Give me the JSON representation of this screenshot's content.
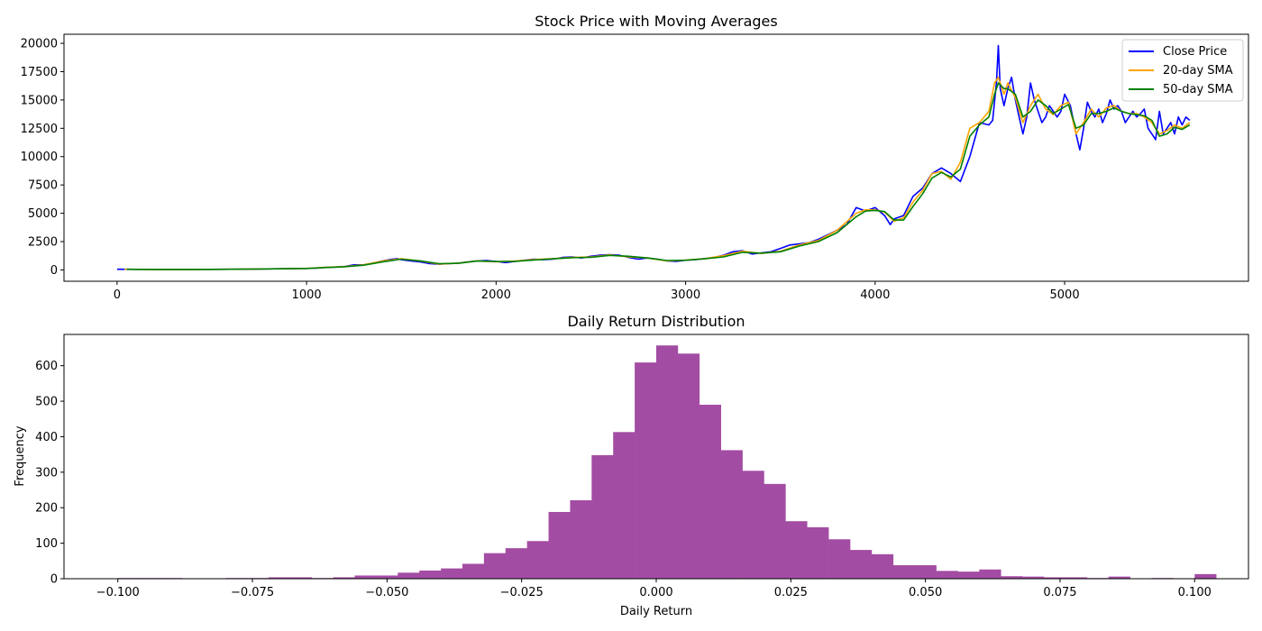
{
  "chart_data": [
    {
      "type": "line",
      "title": "Stock Price with Moving Averages",
      "xlabel": "",
      "ylabel": "",
      "xlim": [
        -280,
        5970
      ],
      "ylim": [
        -1000,
        20800
      ],
      "xticks": [
        0,
        1000,
        2000,
        3000,
        4000,
        5000
      ],
      "yticks": [
        0,
        2500,
        5000,
        7500,
        10000,
        12500,
        15000,
        17500,
        20000
      ],
      "grid": false,
      "legend_position": "top-right",
      "series": [
        {
          "name": "Close Price",
          "color": "#0000ff",
          "x": [
            0,
            100,
            200,
            300,
            400,
            500,
            600,
            700,
            800,
            900,
            1000,
            1050,
            1080,
            1100,
            1150,
            1200,
            1250,
            1300,
            1350,
            1400,
            1450,
            1480,
            1500,
            1550,
            1600,
            1650,
            1700,
            1750,
            1800,
            1850,
            1900,
            1950,
            2000,
            2050,
            2100,
            2150,
            2200,
            2250,
            2300,
            2350,
            2400,
            2450,
            2500,
            2550,
            2600,
            2650,
            2700,
            2750,
            2800,
            2850,
            2900,
            2950,
            3000,
            3050,
            3100,
            3150,
            3200,
            3250,
            3300,
            3350,
            3400,
            3450,
            3500,
            3550,
            3600,
            3650,
            3700,
            3750,
            3800,
            3850,
            3900,
            3950,
            4000,
            4050,
            4080,
            4100,
            4150,
            4200,
            4250,
            4300,
            4350,
            4400,
            4450,
            4500,
            4550,
            4600,
            4620,
            4640,
            4650,
            4660,
            4680,
            4700,
            4720,
            4740,
            4760,
            4780,
            4800,
            4820,
            4840,
            4860,
            4880,
            4900,
            4920,
            4940,
            4960,
            4980,
            5000,
            5030,
            5060,
            5080,
            5100,
            5120,
            5140,
            5160,
            5180,
            5200,
            5220,
            5240,
            5260,
            5280,
            5300,
            5320,
            5340,
            5360,
            5380,
            5400,
            5420,
            5440,
            5460,
            5480,
            5500,
            5520,
            5540,
            5560,
            5580,
            5600,
            5620,
            5640,
            5660
          ],
          "y": [
            60,
            50,
            45,
            40,
            45,
            50,
            60,
            70,
            90,
            110,
            130,
            150,
            200,
            230,
            250,
            300,
            450,
            450,
            600,
            800,
            950,
            1000,
            900,
            800,
            700,
            550,
            500,
            550,
            600,
            700,
            800,
            820,
            750,
            650,
            750,
            850,
            950,
            900,
            950,
            1100,
            1150,
            1050,
            1200,
            1300,
            1350,
            1300,
            1100,
            950,
            1050,
            950,
            800,
            750,
            850,
            900,
            1000,
            1100,
            1300,
            1600,
            1700,
            1400,
            1500,
            1600,
            1900,
            2200,
            2300,
            2400,
            2700,
            3100,
            3500,
            4000,
            5500,
            5200,
            5500,
            4800,
            4000,
            4500,
            4800,
            6500,
            7200,
            8500,
            9000,
            8500,
            7800,
            10000,
            13000,
            12800,
            13200,
            16500,
            19800,
            16000,
            14500,
            16000,
            17000,
            15000,
            13500,
            12000,
            13500,
            16500,
            15000,
            14000,
            13000,
            13500,
            14500,
            14000,
            13500,
            14000,
            15500,
            14500,
            12000,
            10600,
            12500,
            14800,
            14000,
            13500,
            14200,
            13000,
            13800,
            15000,
            14200,
            14500,
            14000,
            13000,
            13500,
            14000,
            13500,
            13800,
            14200,
            12500,
            12000,
            11500,
            14000,
            12000,
            12500,
            13000,
            12000,
            13500,
            12800,
            13500,
            13200
          ]
        },
        {
          "name": "20-day SMA",
          "color": "#ffa500",
          "x": [
            40,
            100,
            200,
            300,
            400,
            500,
            600,
            700,
            800,
            900,
            1000,
            1100,
            1200,
            1300,
            1400,
            1500,
            1600,
            1700,
            1800,
            1900,
            2000,
            2100,
            2200,
            2300,
            2400,
            2500,
            2600,
            2700,
            2800,
            2900,
            3000,
            3100,
            3200,
            3300,
            3400,
            3500,
            3600,
            3700,
            3800,
            3900,
            3950,
            4000,
            4050,
            4100,
            4150,
            4200,
            4250,
            4300,
            4350,
            4400,
            4450,
            4500,
            4550,
            4600,
            4630,
            4650,
            4680,
            4700,
            4740,
            4780,
            4820,
            4860,
            4900,
            4940,
            4980,
            5020,
            5060,
            5100,
            5140,
            5180,
            5220,
            5260,
            5300,
            5340,
            5380,
            5420,
            5460,
            5500,
            5540,
            5580,
            5620,
            5660
          ],
          "y": [
            55,
            48,
            43,
            42,
            46,
            52,
            60,
            72,
            92,
            110,
            130,
            230,
            300,
            450,
            780,
            980,
            780,
            520,
            600,
            800,
            720,
            780,
            920,
            1000,
            1100,
            1150,
            1320,
            1150,
            1050,
            800,
            860,
            1000,
            1250,
            1650,
            1450,
            1650,
            2200,
            2600,
            3500,
            5000,
            5300,
            5300,
            5100,
            4300,
            4600,
            6000,
            7000,
            8500,
            8700,
            8000,
            9500,
            12500,
            13000,
            14000,
            16500,
            17000,
            15500,
            16500,
            15200,
            13000,
            14500,
            15500,
            14200,
            13700,
            14500,
            14800,
            12000,
            13000,
            14200,
            13500,
            14300,
            14500,
            14000,
            13800,
            13800,
            13500,
            13000,
            12000,
            12300,
            12800,
            12500,
            13000
          ]
        },
        {
          "name": "50-day SMA",
          "color": "#008000",
          "x": [
            50,
            100,
            200,
            300,
            400,
            500,
            600,
            700,
            800,
            900,
            1000,
            1100,
            1200,
            1300,
            1400,
            1500,
            1600,
            1700,
            1800,
            1900,
            2000,
            2100,
            2200,
            2300,
            2400,
            2500,
            2600,
            2700,
            2800,
            2900,
            3000,
            3100,
            3200,
            3300,
            3400,
            3500,
            3600,
            3700,
            3800,
            3900,
            3950,
            4000,
            4050,
            4100,
            4150,
            4200,
            4250,
            4300,
            4350,
            4400,
            4450,
            4500,
            4550,
            4600,
            4630,
            4650,
            4680,
            4700,
            4740,
            4780,
            4820,
            4860,
            4900,
            4940,
            4980,
            5020,
            5060,
            5100,
            5140,
            5180,
            5220,
            5260,
            5300,
            5340,
            5380,
            5420,
            5460,
            5500,
            5540,
            5580,
            5620,
            5660
          ],
          "y": [
            55,
            48,
            44,
            42,
            45,
            50,
            58,
            70,
            90,
            108,
            128,
            210,
            280,
            420,
            700,
            950,
            800,
            550,
            580,
            780,
            740,
            760,
            880,
            980,
            1080,
            1120,
            1280,
            1200,
            1050,
            830,
            850,
            980,
            1150,
            1550,
            1480,
            1600,
            2100,
            2500,
            3300,
            4700,
            5200,
            5250,
            5150,
            4400,
            4400,
            5600,
            6700,
            8100,
            8600,
            8200,
            8900,
            11800,
            12800,
            13500,
            15500,
            16500,
            16000,
            16000,
            15500,
            13500,
            14000,
            15000,
            14500,
            13800,
            14200,
            14600,
            12500,
            12800,
            13800,
            13800,
            14000,
            14300,
            14000,
            13800,
            13700,
            13600,
            13200,
            11800,
            12000,
            12600,
            12400,
            12800
          ]
        }
      ]
    },
    {
      "type": "bar",
      "title": "Daily Return Distribution",
      "xlabel": "Daily Return",
      "ylabel": "Frequency",
      "xlim": [
        -0.11,
        0.11
      ],
      "ylim": [
        0,
        688
      ],
      "xticks": [
        "-0.100",
        "-0.075",
        "-0.050",
        "-0.025",
        "0.000",
        "0.025",
        "0.050",
        "0.075",
        "0.100"
      ],
      "yticks": [
        0,
        100,
        200,
        300,
        400,
        500,
        600
      ],
      "color": "#a34ca3",
      "bin_start": -0.1,
      "bin_width": 0.004,
      "counts": [
        2,
        2,
        2,
        0,
        1,
        2,
        2,
        4,
        4,
        2,
        4,
        9,
        9,
        17,
        23,
        29,
        42,
        72,
        86,
        106,
        188,
        221,
        348,
        413,
        609,
        657,
        634,
        490,
        362,
        304,
        267,
        162,
        145,
        111,
        81,
        69,
        38,
        38,
        22,
        20,
        26,
        7,
        6,
        4,
        4,
        2,
        6,
        1,
        2,
        1,
        13
      ]
    }
  ]
}
